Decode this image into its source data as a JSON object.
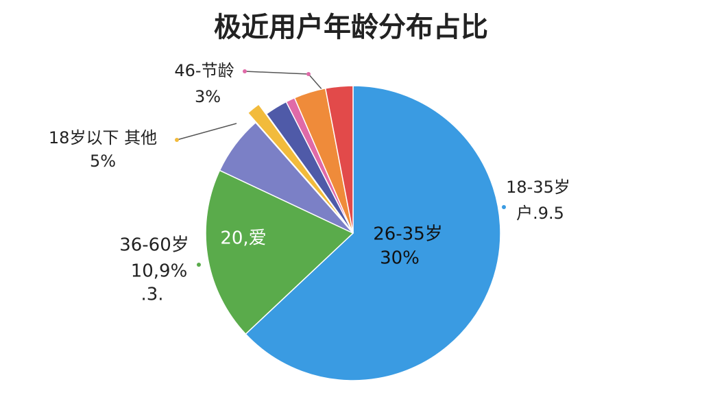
{
  "chart_data": {
    "type": "pie",
    "title": "极近用户年龄分布占比",
    "values": [
      63,
      19,
      6.5,
      1.5,
      2.5,
      1,
      3.5,
      3
    ],
    "colors": [
      "#3a9be2",
      "#5aab4b",
      "#7b80c6",
      "#f2bb3c",
      "#4f5aa8",
      "#e06aa8",
      "#ef8b3a",
      "#e24a4a"
    ],
    "annotations": [
      "26-35岁",
      "30%",
      "20,爱",
      "36-60岁",
      "10,9%",
      ".3.",
      "18岁以下 其他",
      "5%",
      "46-节龄",
      "3%",
      "18-35岁",
      "户.9.5"
    ]
  }
}
